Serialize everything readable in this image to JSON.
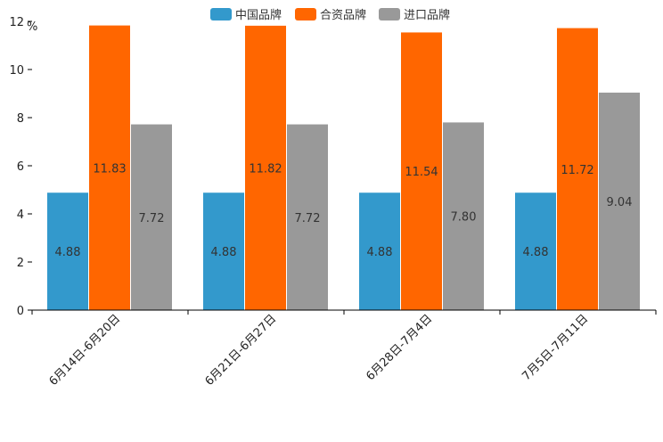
{
  "chart_data": {
    "type": "bar",
    "title": "",
    "xlabel": "",
    "ylabel": "%",
    "ylim": [
      0,
      12
    ],
    "yticks": [
      "0",
      "2",
      "4",
      "6",
      "8",
      "10",
      "12"
    ],
    "categories": [
      "6月14日-6月20日",
      "6月21日-6月27日",
      "6月28日-7月4日",
      "7月5日-7月11日"
    ],
    "series": [
      {
        "name": "中国品牌",
        "color": "#3399CC",
        "values": [
          4.88,
          4.88,
          4.88,
          4.88
        ],
        "labels": [
          "4.88",
          "4.88",
          "4.88",
          "4.88"
        ]
      },
      {
        "name": "合资品牌",
        "color": "#FF6600",
        "values": [
          11.83,
          11.82,
          11.54,
          11.72
        ],
        "labels": [
          "11.83",
          "11.82",
          "11.54",
          "11.72"
        ]
      },
      {
        "name": "进口品牌",
        "color": "#999999",
        "values": [
          7.72,
          7.72,
          7.8,
          9.04
        ],
        "labels": [
          "7.72",
          "7.72",
          "7.80",
          "9.04"
        ]
      }
    ],
    "legend_position": "top-center",
    "grid": false
  }
}
